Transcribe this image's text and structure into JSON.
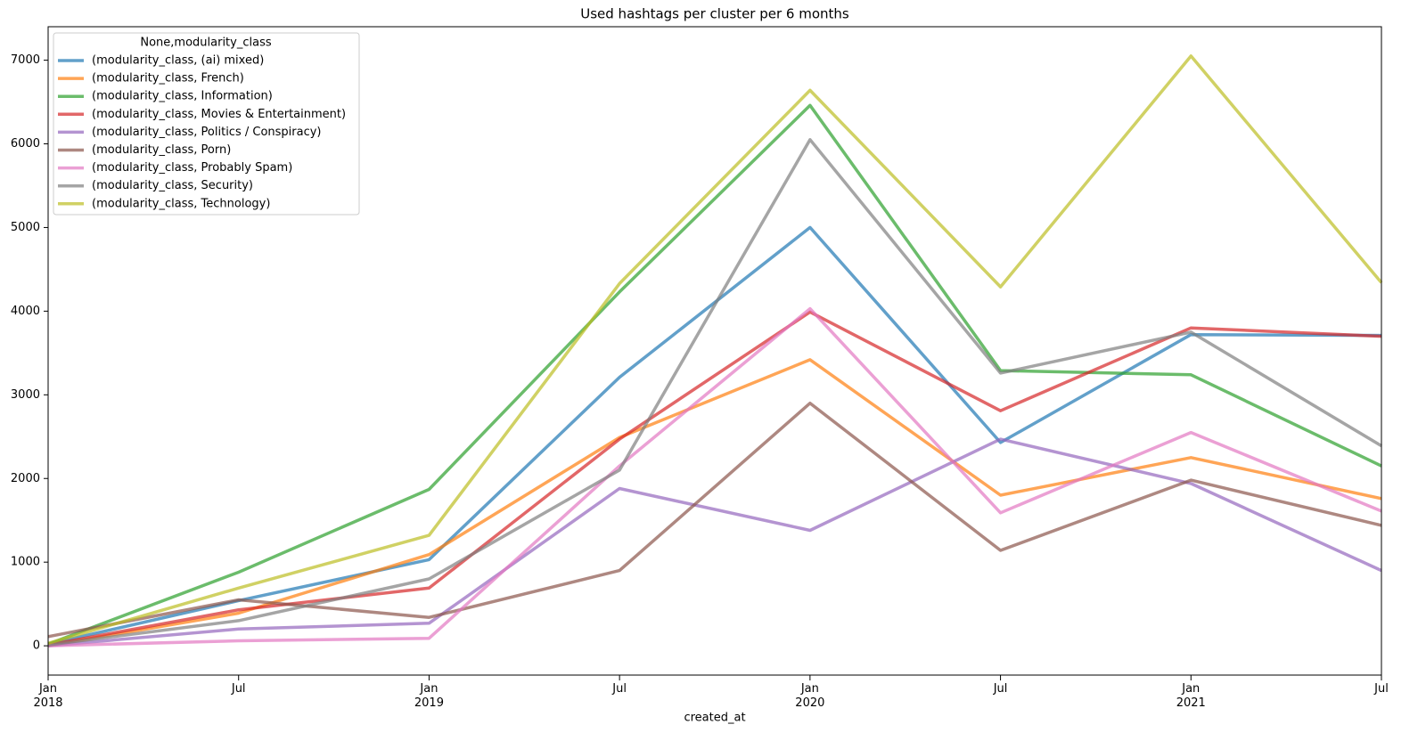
{
  "chart_data": {
    "type": "line",
    "title": "Used hashtags per cluster per 6 months",
    "x_label": "created_at",
    "categories": [
      "Jan\n2018",
      "Jul",
      "Jan\n2019",
      "Jul",
      "Jan\n2020",
      "Jul",
      "Jan\n2021",
      "Jul"
    ],
    "legend_title": "None,modularity_class",
    "legend": "upper left",
    "ylim": [
      -350,
      7400
    ],
    "yticks": [
      0,
      1000,
      2000,
      3000,
      4000,
      5000,
      6000,
      7000
    ],
    "grid": false,
    "series": [
      {
        "name": "(modularity_class, (ai) mixed)",
        "color": "#1f77b4",
        "values": [
          20,
          540,
          1030,
          3210,
          5000,
          2430,
          3720,
          3710
        ]
      },
      {
        "name": "(modularity_class, French)",
        "color": "#ff7f0e",
        "values": [
          0,
          390,
          1090,
          2490,
          3420,
          1800,
          2250,
          1760
        ]
      },
      {
        "name": "(modularity_class, Information)",
        "color": "#2ca02c",
        "values": [
          20,
          880,
          1870,
          4230,
          6460,
          3290,
          3240,
          2150
        ]
      },
      {
        "name": "(modularity_class, Movies & Entertainment)",
        "color": "#d62728",
        "values": [
          10,
          430,
          690,
          2470,
          3990,
          2810,
          3800,
          3700
        ]
      },
      {
        "name": "(modularity_class, Politics / Conspiracy)",
        "color": "#9467bd",
        "values": [
          0,
          200,
          270,
          1880,
          1380,
          2470,
          1940,
          900
        ]
      },
      {
        "name": "(modularity_class, Porn)",
        "color": "#8c564b",
        "values": [
          110,
          550,
          340,
          900,
          2900,
          1140,
          1980,
          1440
        ]
      },
      {
        "name": "(modularity_class, Probably Spam)",
        "color": "#e377c2",
        "values": [
          0,
          60,
          90,
          2150,
          4030,
          1590,
          2550,
          1610
        ]
      },
      {
        "name": "(modularity_class, Security)",
        "color": "#7f7f7f",
        "values": [
          10,
          300,
          800,
          2100,
          6050,
          3260,
          3750,
          2390
        ]
      },
      {
        "name": "(modularity_class, Technology)",
        "color": "#bcbd22",
        "values": [
          30,
          690,
          1320,
          4330,
          6640,
          4290,
          7050,
          4340
        ]
      }
    ]
  }
}
